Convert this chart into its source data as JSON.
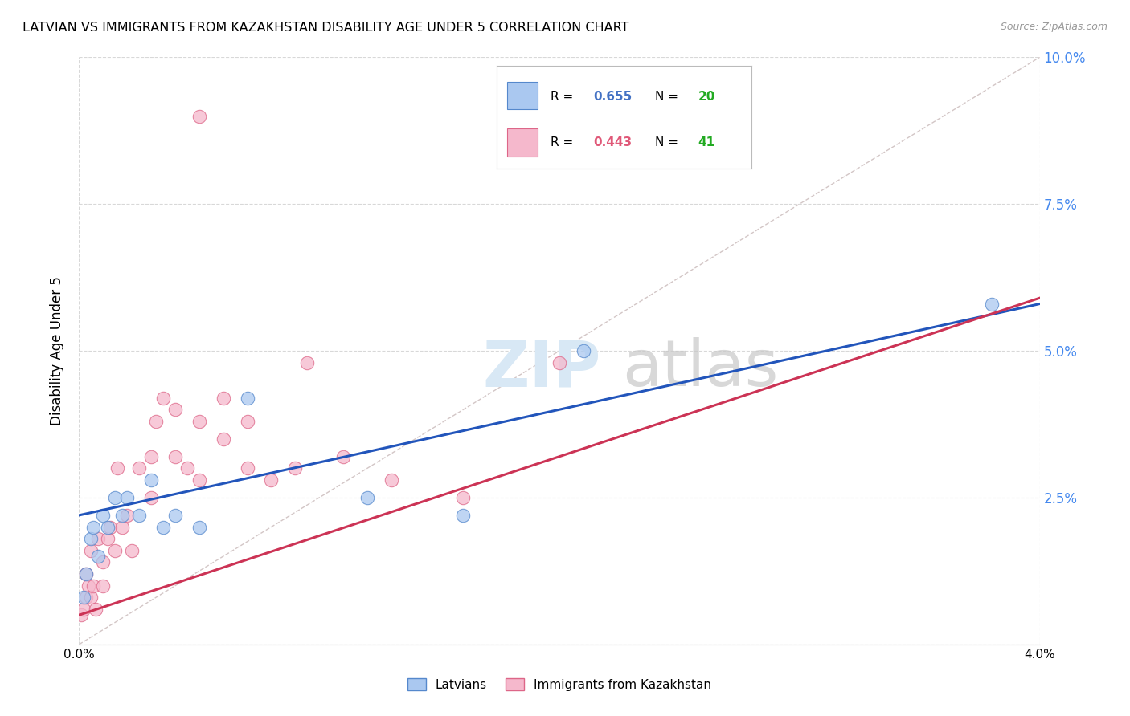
{
  "title": "LATVIAN VS IMMIGRANTS FROM KAZAKHSTAN DISABILITY AGE UNDER 5 CORRELATION CHART",
  "source": "Source: ZipAtlas.com",
  "ylabel": "Disability Age Under 5",
  "xmin": 0.0,
  "xmax": 0.04,
  "ymin": 0.0,
  "ymax": 0.1,
  "background_color": "#ffffff",
  "grid_color": "#d8d8d8",
  "latvian_face_color": "#aac8f0",
  "latvian_edge_color": "#5588cc",
  "kazakh_face_color": "#f5b8cc",
  "kazakh_edge_color": "#dd6688",
  "latvian_R": "0.655",
  "latvian_N": "20",
  "kazakh_R": "0.443",
  "kazakh_N": "41",
  "legend_R_blue": "#4472c4",
  "legend_R_pink": "#e05878",
  "legend_N_green": "#22aa22",
  "diag_line_color": "#c8b8b8",
  "latvian_line_color": "#2255bb",
  "kazakh_line_color": "#cc3355",
  "watermark_zip_color": "#d8e8f5",
  "watermark_atlas_color": "#c8c8c8",
  "latvian_x": [
    0.0002,
    0.0003,
    0.0005,
    0.0006,
    0.0008,
    0.001,
    0.0012,
    0.0015,
    0.0018,
    0.002,
    0.0025,
    0.003,
    0.0035,
    0.004,
    0.005,
    0.007,
    0.012,
    0.016,
    0.021,
    0.038
  ],
  "latvian_y": [
    0.008,
    0.012,
    0.018,
    0.02,
    0.015,
    0.022,
    0.02,
    0.025,
    0.022,
    0.025,
    0.022,
    0.028,
    0.02,
    0.022,
    0.02,
    0.042,
    0.025,
    0.022,
    0.05,
    0.058
  ],
  "kazakh_x": [
    0.0001,
    0.0002,
    0.0003,
    0.0003,
    0.0004,
    0.0005,
    0.0005,
    0.0006,
    0.0007,
    0.0008,
    0.001,
    0.001,
    0.0012,
    0.0013,
    0.0015,
    0.0016,
    0.0018,
    0.002,
    0.0022,
    0.0025,
    0.003,
    0.003,
    0.0032,
    0.0035,
    0.004,
    0.004,
    0.0045,
    0.005,
    0.005,
    0.006,
    0.006,
    0.007,
    0.007,
    0.008,
    0.009,
    0.0095,
    0.011,
    0.013,
    0.016,
    0.02,
    0.005
  ],
  "kazakh_y": [
    0.005,
    0.006,
    0.008,
    0.012,
    0.01,
    0.008,
    0.016,
    0.01,
    0.006,
    0.018,
    0.01,
    0.014,
    0.018,
    0.02,
    0.016,
    0.03,
    0.02,
    0.022,
    0.016,
    0.03,
    0.025,
    0.032,
    0.038,
    0.042,
    0.032,
    0.04,
    0.03,
    0.028,
    0.038,
    0.035,
    0.042,
    0.038,
    0.03,
    0.028,
    0.03,
    0.048,
    0.032,
    0.028,
    0.025,
    0.048,
    0.09
  ],
  "lv_intercept": 0.022,
  "lv_slope": 0.9,
  "kz_intercept": 0.005,
  "kz_slope": 1.35
}
